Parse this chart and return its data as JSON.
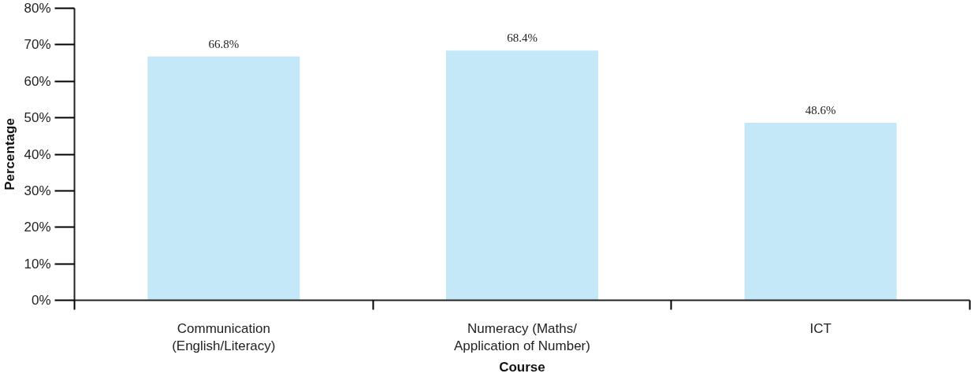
{
  "chart_data": {
    "type": "bar",
    "xlabel": "Course",
    "ylabel": "Percentage",
    "categories": [
      "Communication\n(English/Literacy)",
      "Numeracy (Maths/\nApplication of Number)",
      "ICT"
    ],
    "values": [
      66.8,
      68.4,
      48.6
    ],
    "color": "#c5e8f8",
    "value_labels": [
      "66.8%",
      "68.4%",
      "48.6%"
    ],
    "ylim": [
      0,
      80
    ],
    "yticks": [
      {
        "value": 0,
        "label": "0%"
      },
      {
        "value": 10,
        "label": "10%"
      },
      {
        "value": 20,
        "label": "20%"
      },
      {
        "value": 30,
        "label": "30%"
      },
      {
        "value": 40,
        "label": "40%"
      },
      {
        "value": 50,
        "label": "50%"
      },
      {
        "value": 60,
        "label": "60%"
      },
      {
        "value": 70,
        "label": "70%"
      },
      {
        "value": 80,
        "label": "80%"
      }
    ],
    "grid": false
  }
}
